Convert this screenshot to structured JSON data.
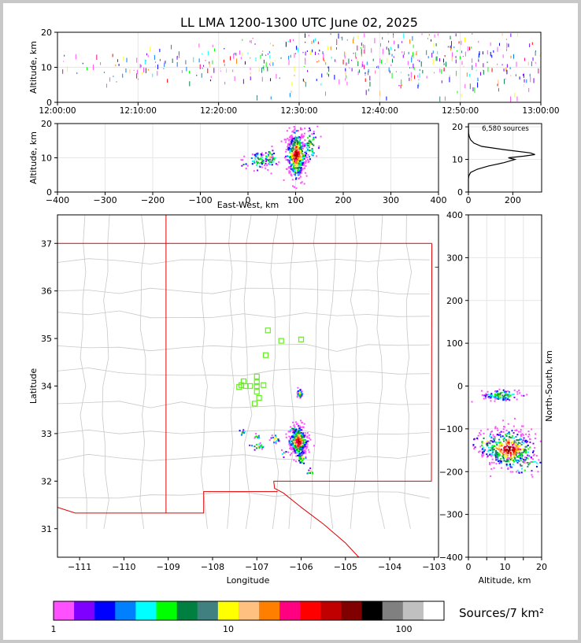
{
  "figure": {
    "title": "LL LMA 1200-1300 UTC June 02, 2025"
  },
  "chart_data": [
    {
      "panel": "time-altitude",
      "type": "scatter",
      "ylabel": "Altitude, km",
      "xlim": [
        "12:00:00",
        "13:00:00"
      ],
      "ylim": [
        0,
        20
      ],
      "xticks": [
        "12:00:00",
        "12:10:00",
        "12:20:00",
        "12:30:00",
        "12:40:00",
        "12:50:00",
        "13:00:00"
      ],
      "yticks": [
        0,
        10,
        20
      ],
      "activity": [
        {
          "t_min": 0.5,
          "ctr": 10,
          "spread": 2,
          "n": 6
        },
        {
          "t_min": 3,
          "ctr": 10,
          "spread": 2,
          "n": 4
        },
        {
          "t_min": 5,
          "ctr": 9,
          "spread": 2,
          "n": 4
        },
        {
          "t_min": 6,
          "ctr": 11,
          "spread": 3,
          "n": 6
        },
        {
          "t_min": 8,
          "ctr": 10,
          "spread": 3,
          "n": 10
        },
        {
          "t_min": 10,
          "ctr": 10,
          "spread": 3,
          "n": 12
        },
        {
          "t_min": 12,
          "ctr": 10,
          "spread": 3,
          "n": 12
        },
        {
          "t_min": 14,
          "ctr": 11,
          "spread": 3,
          "n": 10
        },
        {
          "t_min": 16,
          "ctr": 11,
          "spread": 3,
          "n": 10
        },
        {
          "t_min": 18,
          "ctr": 11,
          "spread": 3,
          "n": 12
        },
        {
          "t_min": 20,
          "ctr": 11,
          "spread": 3,
          "n": 12
        },
        {
          "t_min": 22,
          "ctr": 12,
          "spread": 4,
          "n": 14
        },
        {
          "t_min": 24,
          "ctr": 12,
          "spread": 4,
          "n": 16
        },
        {
          "t_min": 26,
          "ctr": 12,
          "spread": 4,
          "n": 16
        },
        {
          "t_min": 28,
          "ctr": 12,
          "spread": 4,
          "n": 18
        },
        {
          "t_min": 30,
          "ctr": 12,
          "spread": 4,
          "n": 20
        },
        {
          "t_min": 32,
          "ctr": 12,
          "spread": 4,
          "n": 22
        },
        {
          "t_min": 34,
          "ctr": 12,
          "spread": 4,
          "n": 22
        },
        {
          "t_min": 36,
          "ctr": 12,
          "spread": 4,
          "n": 24
        },
        {
          "t_min": 38,
          "ctr": 12,
          "spread": 5,
          "n": 24
        },
        {
          "t_min": 40,
          "ctr": 12,
          "spread": 5,
          "n": 26
        },
        {
          "t_min": 42,
          "ctr": 12,
          "spread": 5,
          "n": 24
        },
        {
          "t_min": 44,
          "ctr": 12,
          "spread": 5,
          "n": 24
        },
        {
          "t_min": 46,
          "ctr": 12,
          "spread": 5,
          "n": 22
        },
        {
          "t_min": 48,
          "ctr": 11,
          "spread": 5,
          "n": 22
        },
        {
          "t_min": 50,
          "ctr": 11,
          "spread": 5,
          "n": 22
        },
        {
          "t_min": 52,
          "ctr": 11,
          "spread": 5,
          "n": 20
        },
        {
          "t_min": 54,
          "ctr": 11,
          "spread": 5,
          "n": 20
        },
        {
          "t_min": 56,
          "ctr": 10,
          "spread": 5,
          "n": 18
        },
        {
          "t_min": 58,
          "ctr": 11,
          "spread": 5,
          "n": 16
        }
      ]
    },
    {
      "panel": "east-west-altitude",
      "type": "heatmap",
      "xlabel": "East-West, km",
      "ylabel": "Altitude, km",
      "xlim": [
        -400,
        400
      ],
      "ylim": [
        0,
        20
      ],
      "xticks": [
        -400,
        -300,
        -200,
        -100,
        0,
        100,
        200,
        300,
        400
      ],
      "yticks": [
        0,
        10,
        20
      ],
      "clusters": [
        {
          "x_km": 100,
          "alt_km": 11,
          "sx": 10,
          "sy": 3.5,
          "n": 520
        },
        {
          "x_km": 130,
          "alt_km": 14,
          "sx": 8,
          "sy": 2.5,
          "n": 60
        },
        {
          "x_km": 45,
          "alt_km": 10,
          "sx": 8,
          "sy": 1.5,
          "n": 60
        },
        {
          "x_km": 20,
          "alt_km": 9.5,
          "sx": 10,
          "sy": 1.2,
          "n": 50
        },
        {
          "x_km": -10,
          "alt_km": 8.5,
          "sx": 3,
          "sy": 0.8,
          "n": 8
        }
      ]
    },
    {
      "panel": "altitude-histogram",
      "type": "line",
      "annotation": "6,580 sources",
      "xlim": [
        0,
        330
      ],
      "ylim": [
        0,
        21
      ],
      "xticks": [
        0,
        200
      ],
      "yticks": [
        0,
        10,
        20
      ],
      "profile": [
        {
          "alt": 0,
          "count": 0
        },
        {
          "alt": 4,
          "count": 0
        },
        {
          "alt": 5,
          "count": 2
        },
        {
          "alt": 6,
          "count": 10
        },
        {
          "alt": 7,
          "count": 40
        },
        {
          "alt": 8,
          "count": 90
        },
        {
          "alt": 9,
          "count": 160
        },
        {
          "alt": 10,
          "count": 210
        },
        {
          "alt": 10.5,
          "count": 180
        },
        {
          "alt": 11,
          "count": 250
        },
        {
          "alt": 11.5,
          "count": 300
        },
        {
          "alt": 12,
          "count": 280
        },
        {
          "alt": 13,
          "count": 160
        },
        {
          "alt": 14,
          "count": 60
        },
        {
          "alt": 15,
          "count": 25
        },
        {
          "alt": 16,
          "count": 10
        },
        {
          "alt": 17,
          "count": 4
        },
        {
          "alt": 18,
          "count": 1
        },
        {
          "alt": 21,
          "count": 0
        }
      ]
    },
    {
      "panel": "plan-view",
      "type": "heatmap",
      "xlabel": "Longitude",
      "ylabel": "Latitude",
      "xlim": [
        -111.5,
        -102.9
      ],
      "ylim": [
        30.4,
        37.6
      ],
      "xticks": [
        -111,
        -110,
        -109,
        -108,
        -107,
        -106,
        -105,
        -104,
        -103
      ],
      "yticks": [
        31,
        32,
        33,
        34,
        35,
        36,
        37
      ],
      "stations": [
        {
          "lon": -106.75,
          "lat": 35.17
        },
        {
          "lon": -106.45,
          "lat": 34.95
        },
        {
          "lon": -106.0,
          "lat": 34.98
        },
        {
          "lon": -106.8,
          "lat": 34.65
        },
        {
          "lon": -107.0,
          "lat": 34.2
        },
        {
          "lon": -107.3,
          "lat": 34.1
        },
        {
          "lon": -107.0,
          "lat": 34.08
        },
        {
          "lon": -107.35,
          "lat": 34.02
        },
        {
          "lon": -107.25,
          "lat": 34.0
        },
        {
          "lon": -107.15,
          "lat": 34.0
        },
        {
          "lon": -107.0,
          "lat": 34.0
        },
        {
          "lon": -106.85,
          "lat": 34.02
        },
        {
          "lon": -107.4,
          "lat": 33.98
        },
        {
          "lon": -107.0,
          "lat": 33.88
        },
        {
          "lon": -106.95,
          "lat": 33.75
        },
        {
          "lon": -107.05,
          "lat": 33.63
        }
      ],
      "clusters": [
        {
          "lon": -106.08,
          "lat": 32.85,
          "sx": 0.1,
          "sy": 0.15,
          "n": 420
        },
        {
          "lon": -106.05,
          "lat": 33.85,
          "sx": 0.03,
          "sy": 0.05,
          "n": 40
        },
        {
          "lon": -106.0,
          "lat": 32.5,
          "sx": 0.05,
          "sy": 0.08,
          "n": 30
        },
        {
          "lon": -106.6,
          "lat": 32.9,
          "sx": 0.05,
          "sy": 0.05,
          "n": 20
        },
        {
          "lon": -107.0,
          "lat": 32.75,
          "sx": 0.1,
          "sy": 0.04,
          "n": 20
        },
        {
          "lon": -107.0,
          "lat": 32.95,
          "sx": 0.05,
          "sy": 0.03,
          "n": 10
        },
        {
          "lon": -107.35,
          "lat": 33.05,
          "sx": 0.04,
          "sy": 0.04,
          "n": 8
        },
        {
          "lon": -106.4,
          "lat": 32.6,
          "sx": 0.04,
          "sy": 0.04,
          "n": 6
        },
        {
          "lon": -105.8,
          "lat": 32.2,
          "sx": 0.05,
          "sy": 0.05,
          "n": 8
        },
        {
          "lon": -106.2,
          "lat": 33.1,
          "sx": 0.04,
          "sy": 0.04,
          "n": 8
        }
      ]
    },
    {
      "panel": "altitude-north-south",
      "type": "heatmap",
      "xlabel": "Altitude, km",
      "ylabel": "North-South, km",
      "xlim": [
        0,
        20
      ],
      "ylim": [
        -400,
        400
      ],
      "xticks": [
        0,
        5,
        10,
        15,
        20
      ],
      "yticks": [
        -400,
        -300,
        -200,
        -100,
        0,
        100,
        200,
        300,
        400
      ],
      "clusters": [
        {
          "alt_km": 11,
          "ns_km": -145,
          "sx": 3.5,
          "sy": 22,
          "n": 480
        },
        {
          "alt_km": 9,
          "ns_km": -20,
          "sx": 2.5,
          "sy": 6,
          "n": 120
        },
        {
          "alt_km": 15,
          "ns_km": -180,
          "sx": 2.5,
          "sy": 15,
          "n": 40
        },
        {
          "alt_km": 5,
          "ns_km": -130,
          "sx": 2.5,
          "sy": 15,
          "n": 40
        }
      ]
    }
  ],
  "colorbar": {
    "label": "Sources/7 km²",
    "ticks": [
      "1",
      "10",
      "100"
    ],
    "colors": [
      "#ff50ff",
      "#8000ff",
      "#0000ff",
      "#0080ff",
      "#00ffff",
      "#00ff00",
      "#008040",
      "#408080",
      "#ffff00",
      "#ffc080",
      "#ff8000",
      "#ff0080",
      "#ff0000",
      "#c00000",
      "#800000",
      "#000000",
      "#808080",
      "#c0c0c0",
      "#ffffff"
    ]
  }
}
